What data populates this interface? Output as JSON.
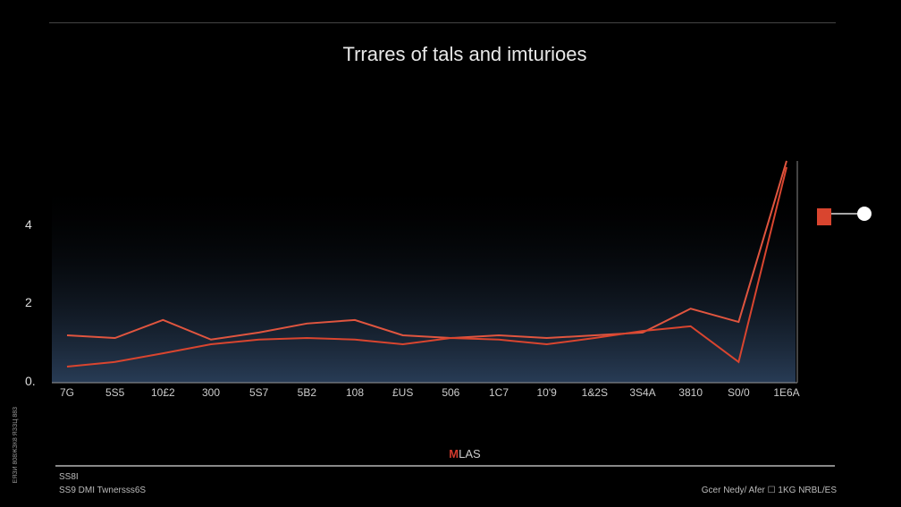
{
  "chart_data": {
    "type": "line",
    "title": "Trrares of tals and imturioes",
    "categories": [
      "7G",
      "5S5",
      "10£2",
      "300",
      "5S7",
      "5B2",
      "108",
      "£US",
      "506",
      "1C7",
      "10'9",
      "1&2S",
      "3S4A",
      "3810",
      "S0/0",
      "1E6A"
    ],
    "yticks": [
      "0.",
      "2",
      "4"
    ],
    "ytick_values": [
      0,
      2,
      4
    ],
    "ylim": [
      0,
      6
    ],
    "grid": false,
    "series": [
      {
        "color": "#e0553f",
        "values": [
          1.21,
          1.14,
          1.6,
          1.1,
          1.28,
          1.51,
          1.6,
          1.21,
          1.14,
          1.21,
          1.14,
          1.21,
          1.28,
          1.89,
          1.55,
          5.66
        ]
      },
      {
        "color": "#d9452f",
        "values": [
          0.41,
          0.53,
          0.75,
          0.98,
          1.1,
          1.14,
          1.1,
          0.98,
          1.14,
          1.1,
          0.98,
          1.14,
          1.32,
          1.44,
          0.53,
          5.5
        ]
      }
    ],
    "legend": {
      "label_marker": "M",
      "label_rest": "LAS",
      "placement": "bottom"
    },
    "area_color": "#2a3f5a"
  },
  "footer": {
    "top_left": "SS8I",
    "left": "SS9 DMI Twnersss6S",
    "right": "Gcer Nedy/ Afer ☐ 1KG NRBL/ES",
    "side": "ЕЯЗИ 808ЖЗК8 ЯЗЗЦ 883"
  }
}
